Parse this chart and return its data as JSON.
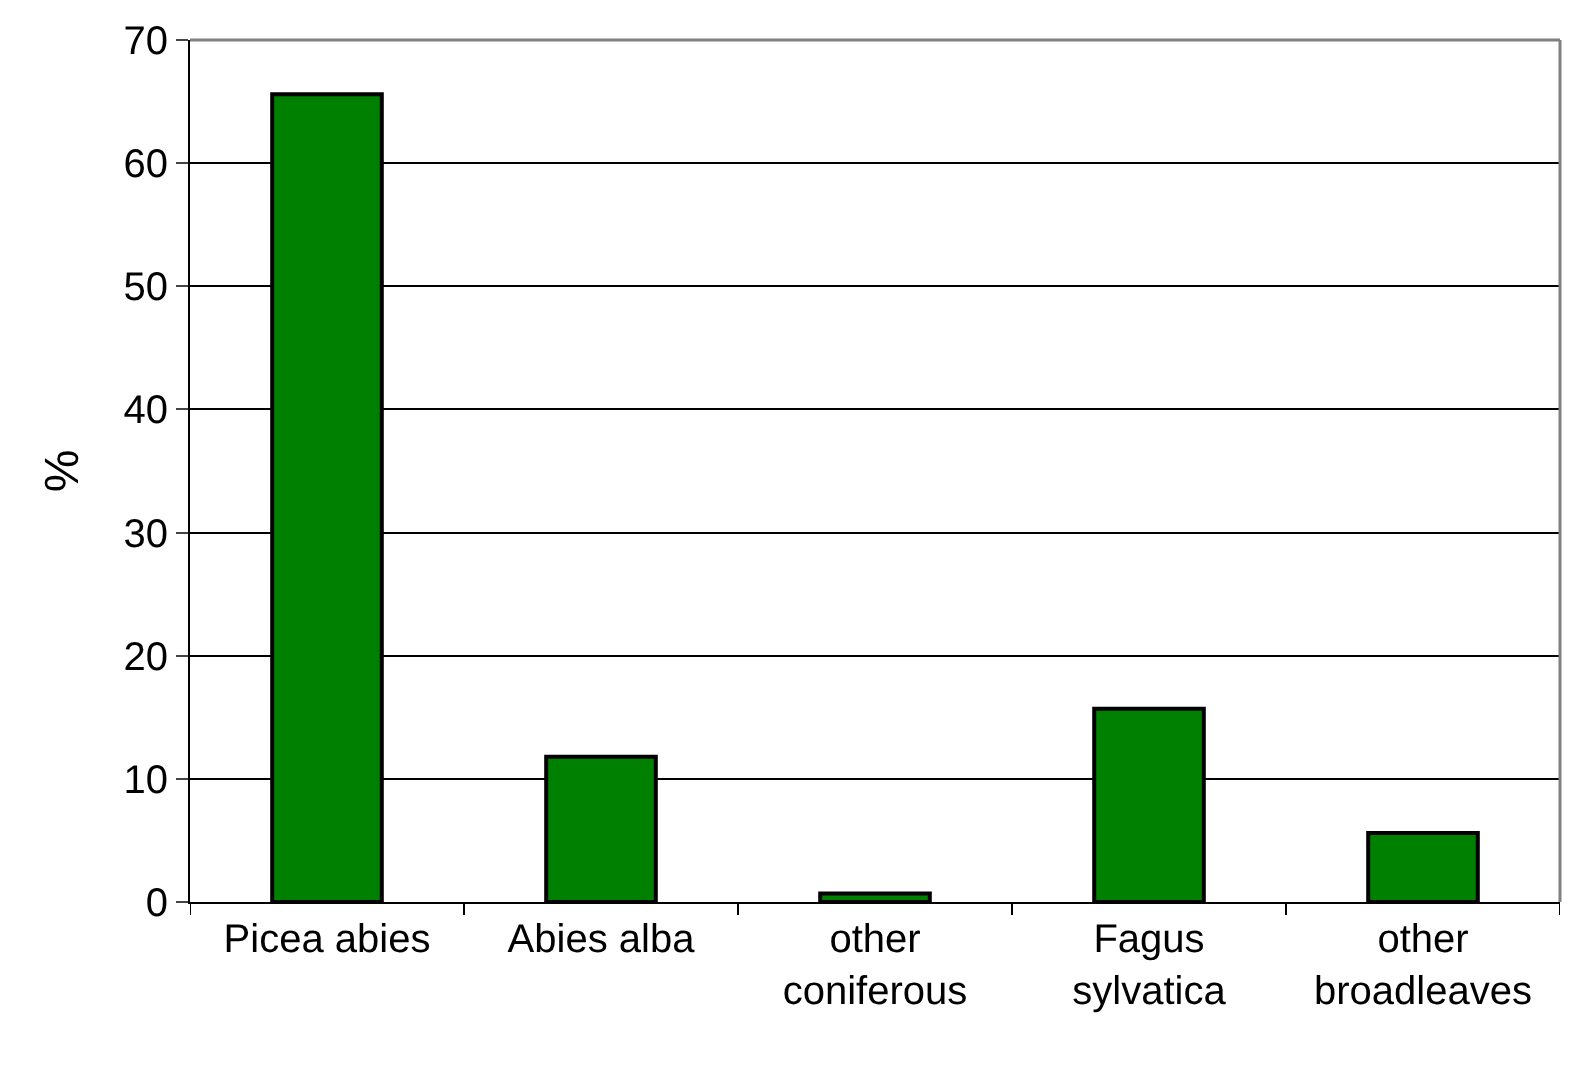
{
  "chart_data": {
    "type": "bar",
    "ylabel": "%",
    "categories": [
      "Picea abies",
      "Abies alba",
      "other\nconiferous",
      "Fagus\nsylvatica",
      "other\nbroadleaves"
    ],
    "values": [
      65.6,
      11.8,
      0.7,
      15.7,
      5.6
    ],
    "color": "#008000",
    "ylim": [
      0,
      70
    ],
    "yticks": [
      0,
      10,
      20,
      30,
      40,
      50,
      60,
      70
    ],
    "grid": "y"
  }
}
